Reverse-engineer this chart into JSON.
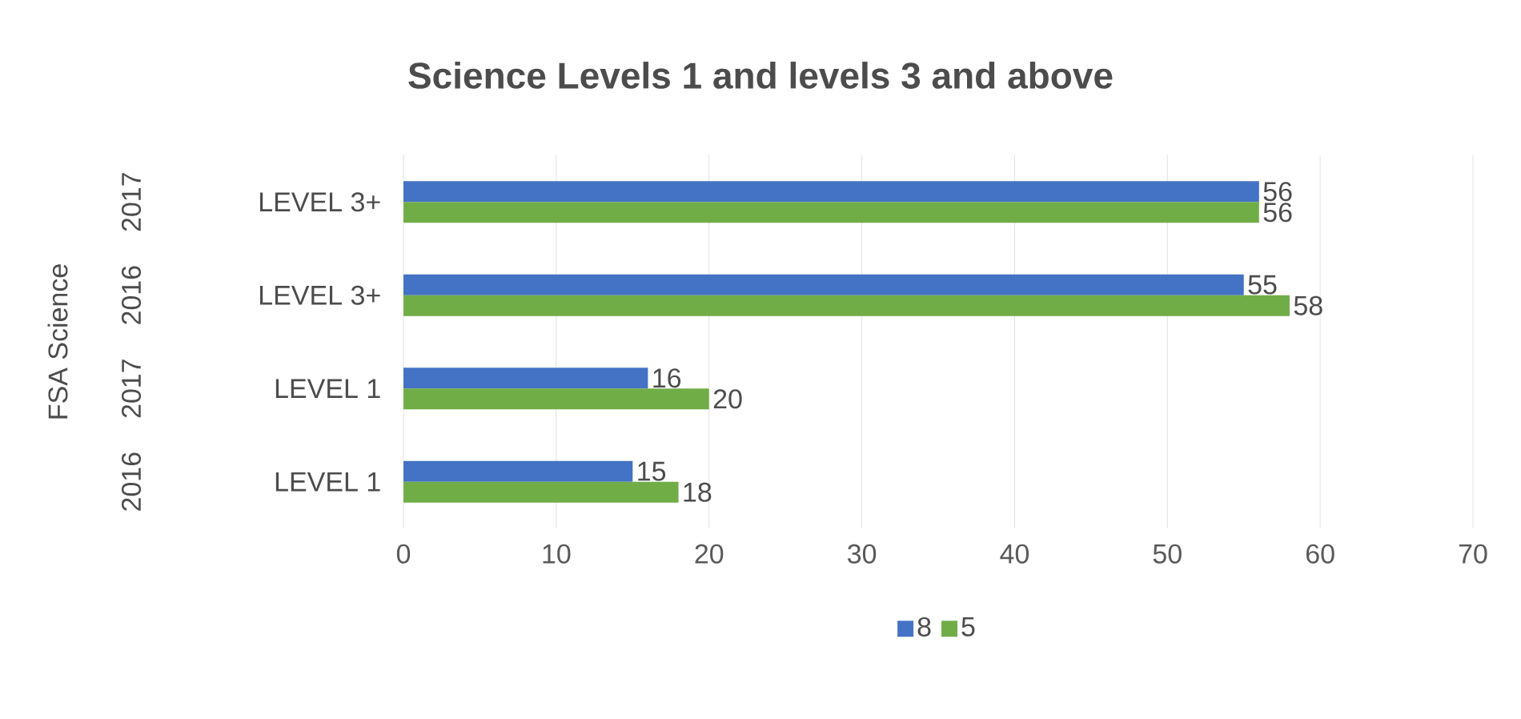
{
  "chart_data": {
    "type": "bar",
    "orientation": "horizontal",
    "title": "Science Levels 1 and levels 3 and above",
    "categories": [
      "LEVEL 3+",
      "LEVEL 3+",
      "LEVEL 1",
      "LEVEL 1"
    ],
    "annotations": [
      "FSA Science",
      "2017",
      "2016",
      "2017",
      "2016"
    ],
    "series": [
      {
        "name": "8",
        "color": "#4472c4",
        "values": [
          56,
          55,
          16,
          15
        ]
      },
      {
        "name": "5",
        "color": "#70ad47",
        "values": [
          56,
          58,
          20,
          18
        ]
      }
    ],
    "xlim": [
      0,
      70
    ],
    "xticks": [
      0,
      10,
      20,
      30,
      40,
      50,
      60,
      70
    ],
    "grid": "x",
    "legend": "bottom",
    "data_labels": true
  }
}
